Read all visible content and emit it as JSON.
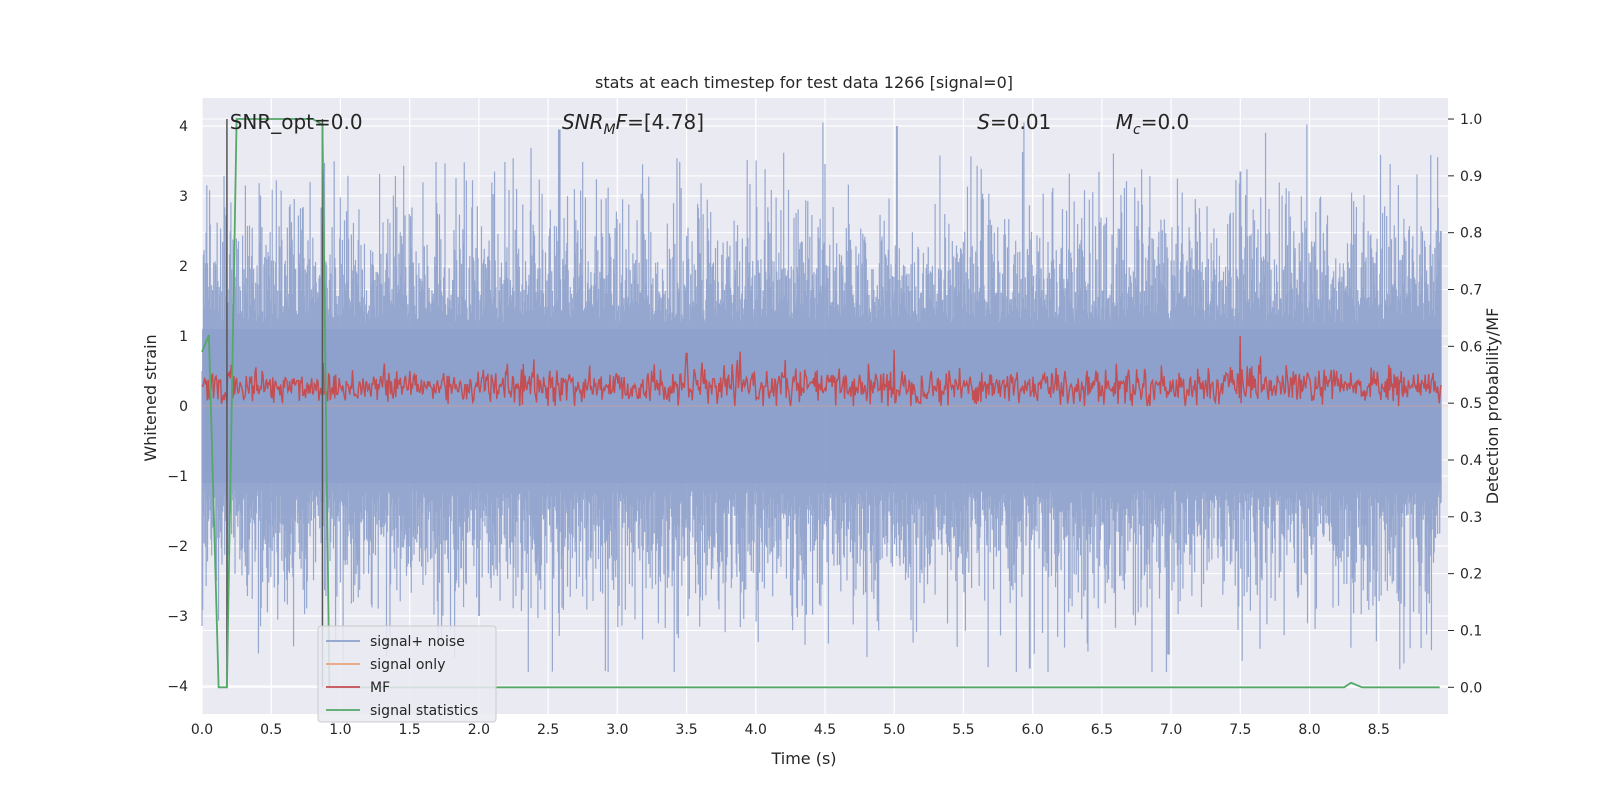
{
  "chart_data": {
    "type": "line",
    "title": "stats at each timestep for test data 1266 [signal=0]",
    "xlabel": "Time (s)",
    "ylabel_left": "Whitened strain",
    "ylabel_right": "Detection probability/MF",
    "xlim": [
      0.0,
      9.0
    ],
    "ylim_left": [
      -4.4,
      4.4
    ],
    "ylim_right": [
      -0.047,
      1.037
    ],
    "xticks": [
      "0.0",
      "0.5",
      "1.0",
      "1.5",
      "2.0",
      "2.5",
      "3.0",
      "3.5",
      "4.0",
      "4.5",
      "5.0",
      "5.5",
      "6.0",
      "6.5",
      "7.0",
      "7.5",
      "8.0",
      "8.5"
    ],
    "yticks_left": [
      "4",
      "3",
      "2",
      "1",
      "0",
      "−1",
      "−2",
      "−3",
      "−4"
    ],
    "yticks_right": [
      "1.0",
      "0.9",
      "0.8",
      "0.7",
      "0.6",
      "0.5",
      "0.4",
      "0.3",
      "0.2",
      "0.1",
      "0.0"
    ],
    "grid": true,
    "legend_position": "lower-left",
    "annotations": [
      {
        "text": "SNR_opt=0.0",
        "x": 0.2,
        "y": 4.1
      },
      {
        "text": "SNR_MF=[4.78]",
        "x": 2.6,
        "y": 4.1
      },
      {
        "text": "S=0.01",
        "x": 5.6,
        "y": 4.1
      },
      {
        "text": "M_c=0.0",
        "x": 6.6,
        "y": 4.1
      }
    ],
    "vertical_markers": [
      0.18,
      0.87
    ],
    "series": [
      {
        "name": "signal+ noise",
        "axis": "left",
        "color": "#8da0cb",
        "description_points": [
          [
            0.0,
            0.5
          ],
          [
            2.0,
            -3.0
          ],
          [
            2.58,
            3.95
          ],
          [
            5.02,
            4.0
          ],
          [
            5.98,
            -3.75
          ],
          [
            6.98,
            -3.55
          ],
          [
            7.5,
            3.35
          ],
          [
            8.95,
            2.5
          ]
        ]
      },
      {
        "name": "signal only",
        "axis": "left",
        "color": "#e8a27c",
        "x": [
          0.0,
          9.0
        ],
        "y": [
          0.0,
          0.0
        ]
      },
      {
        "name": "MF",
        "axis": "left",
        "color": "#c44e52",
        "description_points": [
          [
            0.0,
            0.3
          ],
          [
            1.5,
            0.5
          ],
          [
            3.5,
            0.75
          ],
          [
            5.0,
            0.8
          ],
          [
            7.5,
            1.0
          ],
          [
            8.95,
            0.3
          ]
        ]
      },
      {
        "name": "signal statistics",
        "axis": "right",
        "color": "#55a868",
        "x": [
          0.0,
          0.05,
          0.12,
          0.18,
          0.25,
          0.3,
          0.45,
          0.6,
          0.8,
          0.87,
          0.92,
          1.0,
          2.0,
          4.0,
          6.0,
          8.0,
          8.25,
          8.3,
          8.38,
          8.94
        ],
        "y": [
          0.59,
          0.62,
          0.0,
          0.0,
          1.0,
          1.0,
          1.0,
          1.0,
          1.0,
          0.99,
          0.0,
          0.0,
          0.0,
          0.0,
          0.0,
          0.0,
          0.0,
          0.008,
          0.0,
          0.0
        ]
      }
    ]
  }
}
